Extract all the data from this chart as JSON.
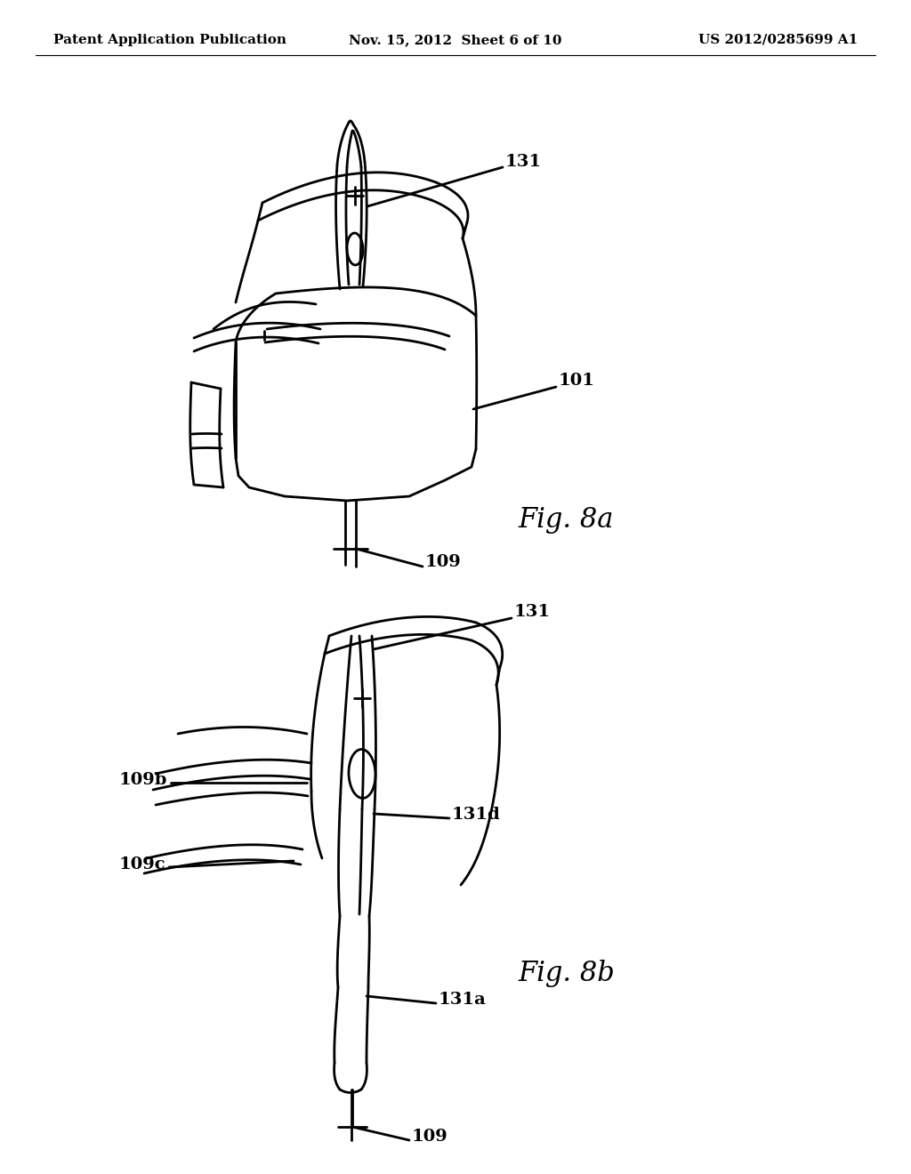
{
  "background_color": "#ffffff",
  "header_left": "Patent Application Publication",
  "header_center": "Nov. 15, 2012  Sheet 6 of 10",
  "header_right": "US 2012/0285699 A1",
  "header_fontsize": 11,
  "fig8a_label": "Fig. 8a",
  "fig8b_label": "Fig. 8b",
  "label_131_8a": "131",
  "label_101_8a": "101",
  "label_109_8a": "109",
  "label_131_8b": "131",
  "label_109b_8b": "109b",
  "label_109c_8b": "109c",
  "label_131d_8b": "131d",
  "label_131a_8b": "131a",
  "label_109_8b": "109",
  "line_color": "#000000",
  "line_width": 2.0
}
